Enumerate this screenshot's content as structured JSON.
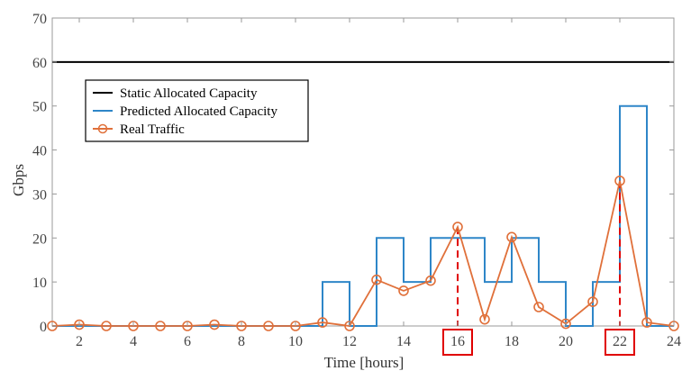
{
  "chart_data": {
    "type": "line",
    "title": "",
    "xlabel": "Time [hours]",
    "ylabel": "Gbps",
    "xlim": [
      1,
      24
    ],
    "ylim": [
      0,
      70
    ],
    "xticks": [
      2,
      4,
      6,
      8,
      10,
      12,
      14,
      16,
      18,
      20,
      22,
      24
    ],
    "yticks": [
      0,
      10,
      20,
      30,
      40,
      50,
      60,
      70
    ],
    "legend_position": "upper-left",
    "highlighted_hours": [
      16,
      22
    ],
    "series": [
      {
        "name": "Static Allocated Capacity",
        "color": "#000000",
        "style": "constant",
        "value": 60
      },
      {
        "name": "Predicted Allocated Capacity",
        "color": "#2e86c8",
        "style": "step",
        "x": [
          1,
          11,
          12,
          13,
          14,
          15,
          17,
          18,
          19,
          20,
          21,
          22,
          23,
          24
        ],
        "values": [
          0,
          10,
          0,
          20,
          10,
          20,
          10,
          20,
          10,
          0,
          10,
          50,
          0,
          0
        ]
      },
      {
        "name": "Real Traffic",
        "color": "#e0703a",
        "style": "line-marker",
        "x": [
          1,
          2,
          3,
          4,
          5,
          6,
          7,
          8,
          9,
          10,
          11,
          12,
          13,
          14,
          15,
          16,
          17,
          18,
          19,
          20,
          21,
          22,
          23,
          24
        ],
        "values": [
          0,
          0.3,
          0,
          0,
          0,
          0,
          0.3,
          0,
          0,
          0,
          0.8,
          0,
          10.5,
          8,
          10.3,
          22.5,
          1.5,
          20.2,
          4.3,
          0.5,
          5.5,
          33,
          0.8,
          0
        ]
      }
    ]
  }
}
